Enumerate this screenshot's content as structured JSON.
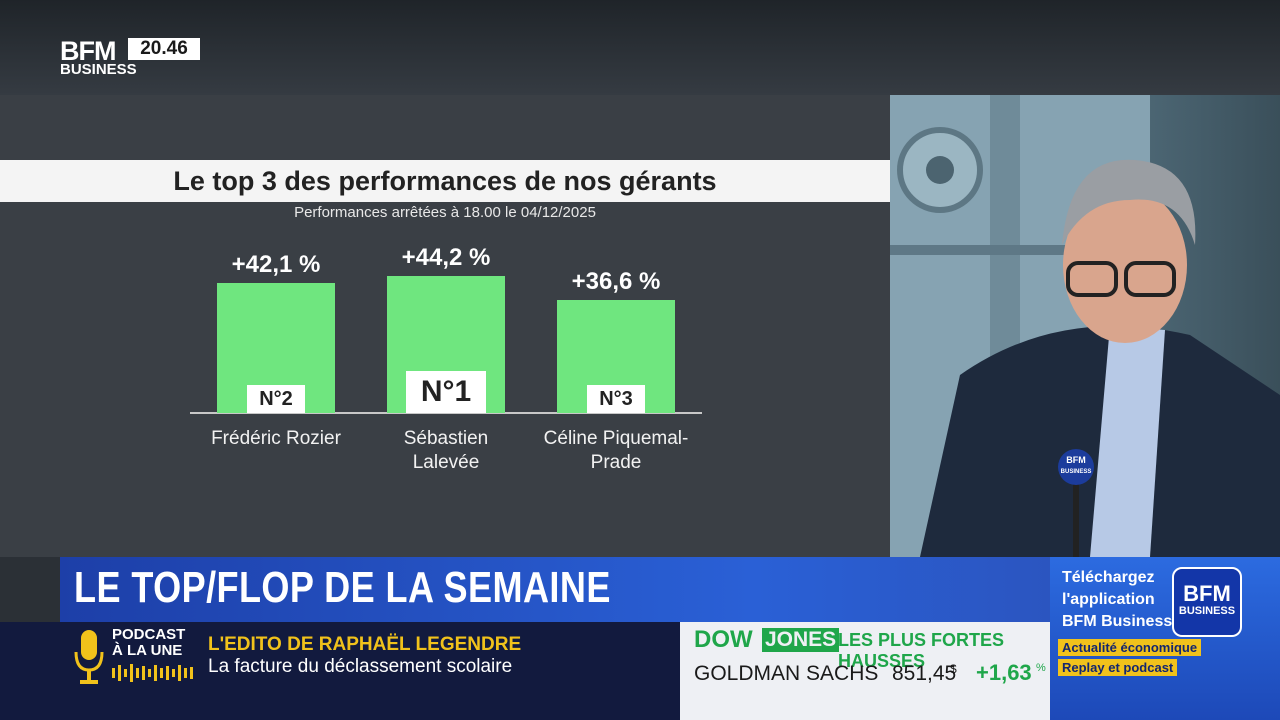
{
  "logo": {
    "brand": "BFM",
    "sub": "BUSINESS",
    "time": "20.46"
  },
  "chart_data": {
    "type": "bar",
    "title": "Le top 3 des performances de nos gérants",
    "subtitle": "Performances arrêtées à 18.00 le 04/12/2025",
    "categories": [
      "Frédéric Rozier",
      "Sébastien Lalevée",
      "Céline Piquemal-Prade"
    ],
    "values": [
      42.1,
      44.2,
      36.6
    ],
    "value_labels": [
      "+42,1 %",
      "+44,2 %",
      "+36,6 %"
    ],
    "ranks": [
      "N°2",
      "N°1",
      "N°3"
    ],
    "color": "#6fe67f"
  },
  "mic_logo": {
    "brand": "BFM",
    "sub": "BUSINESS"
  },
  "banner": {
    "title": "LE TOP/FLOP DE LA SEMAINE"
  },
  "podcast": {
    "label_1": "PODCAST",
    "label_2": "À LA UNE",
    "headline": "L'EDITO DE RAPHAËL LEGENDRE",
    "subline": "La facture du déclassement scolaire"
  },
  "market": {
    "index_1": "DOW",
    "index_2": "JONES",
    "heading": "LES PLUS FORTES HAUSSES",
    "stock": "GOLDMAN SACHS",
    "price": "851,45",
    "currency": "$",
    "change": "+1,63",
    "change_unit": "%"
  },
  "promo": {
    "line_1": "Téléchargez",
    "line_2": "l'application",
    "line_3": "BFM Business",
    "tag_1": "Actualité économique",
    "tag_2": "Replay et podcast",
    "logo_brand": "BFM",
    "logo_sub": "BUSINESS"
  }
}
